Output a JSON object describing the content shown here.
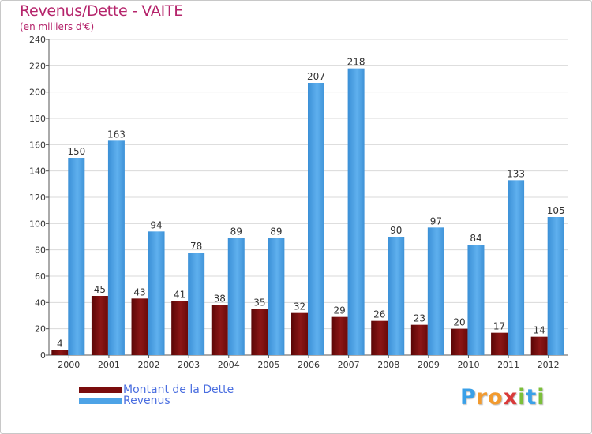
{
  "title": "Revenus/Dette - VAITE",
  "subtitle": "(en milliers d'€)",
  "chart_data": {
    "type": "bar",
    "title": "Revenus/Dette - VAITE",
    "ylabel": "(en milliers d'€)",
    "xlabel": "",
    "ylim": [
      0,
      240
    ],
    "yticks": [
      0,
      20,
      40,
      60,
      80,
      100,
      120,
      140,
      160,
      180,
      200,
      220,
      240
    ],
    "categories": [
      "2000",
      "2001",
      "2002",
      "2003",
      "2004",
      "2005",
      "2006",
      "2007",
      "2008",
      "2009",
      "2010",
      "2011",
      "2012"
    ],
    "series": [
      {
        "name": "Montant de la Dette",
        "color": "#7a0c0c",
        "values": [
          4,
          45,
          43,
          41,
          38,
          35,
          32,
          29,
          26,
          23,
          20,
          17,
          14
        ]
      },
      {
        "name": "Revenus",
        "color": "#4da3e6",
        "values": [
          150,
          163,
          94,
          78,
          89,
          89,
          207,
          218,
          90,
          97,
          84,
          133,
          105
        ]
      }
    ],
    "grid": true,
    "legend": "bottom-left"
  },
  "legend": {
    "debt_label": "Montant de la Dette",
    "revenue_label": "Revenus"
  },
  "logo": {
    "letters": [
      "P",
      "r",
      "o",
      "x",
      "i",
      "t",
      "i"
    ],
    "colors": [
      "#3aa0e8",
      "#f29a2e",
      "#f29a2e",
      "#d93a3a",
      "#7bbf3a",
      "#3aa0e8",
      "#7bbf3a"
    ]
  }
}
